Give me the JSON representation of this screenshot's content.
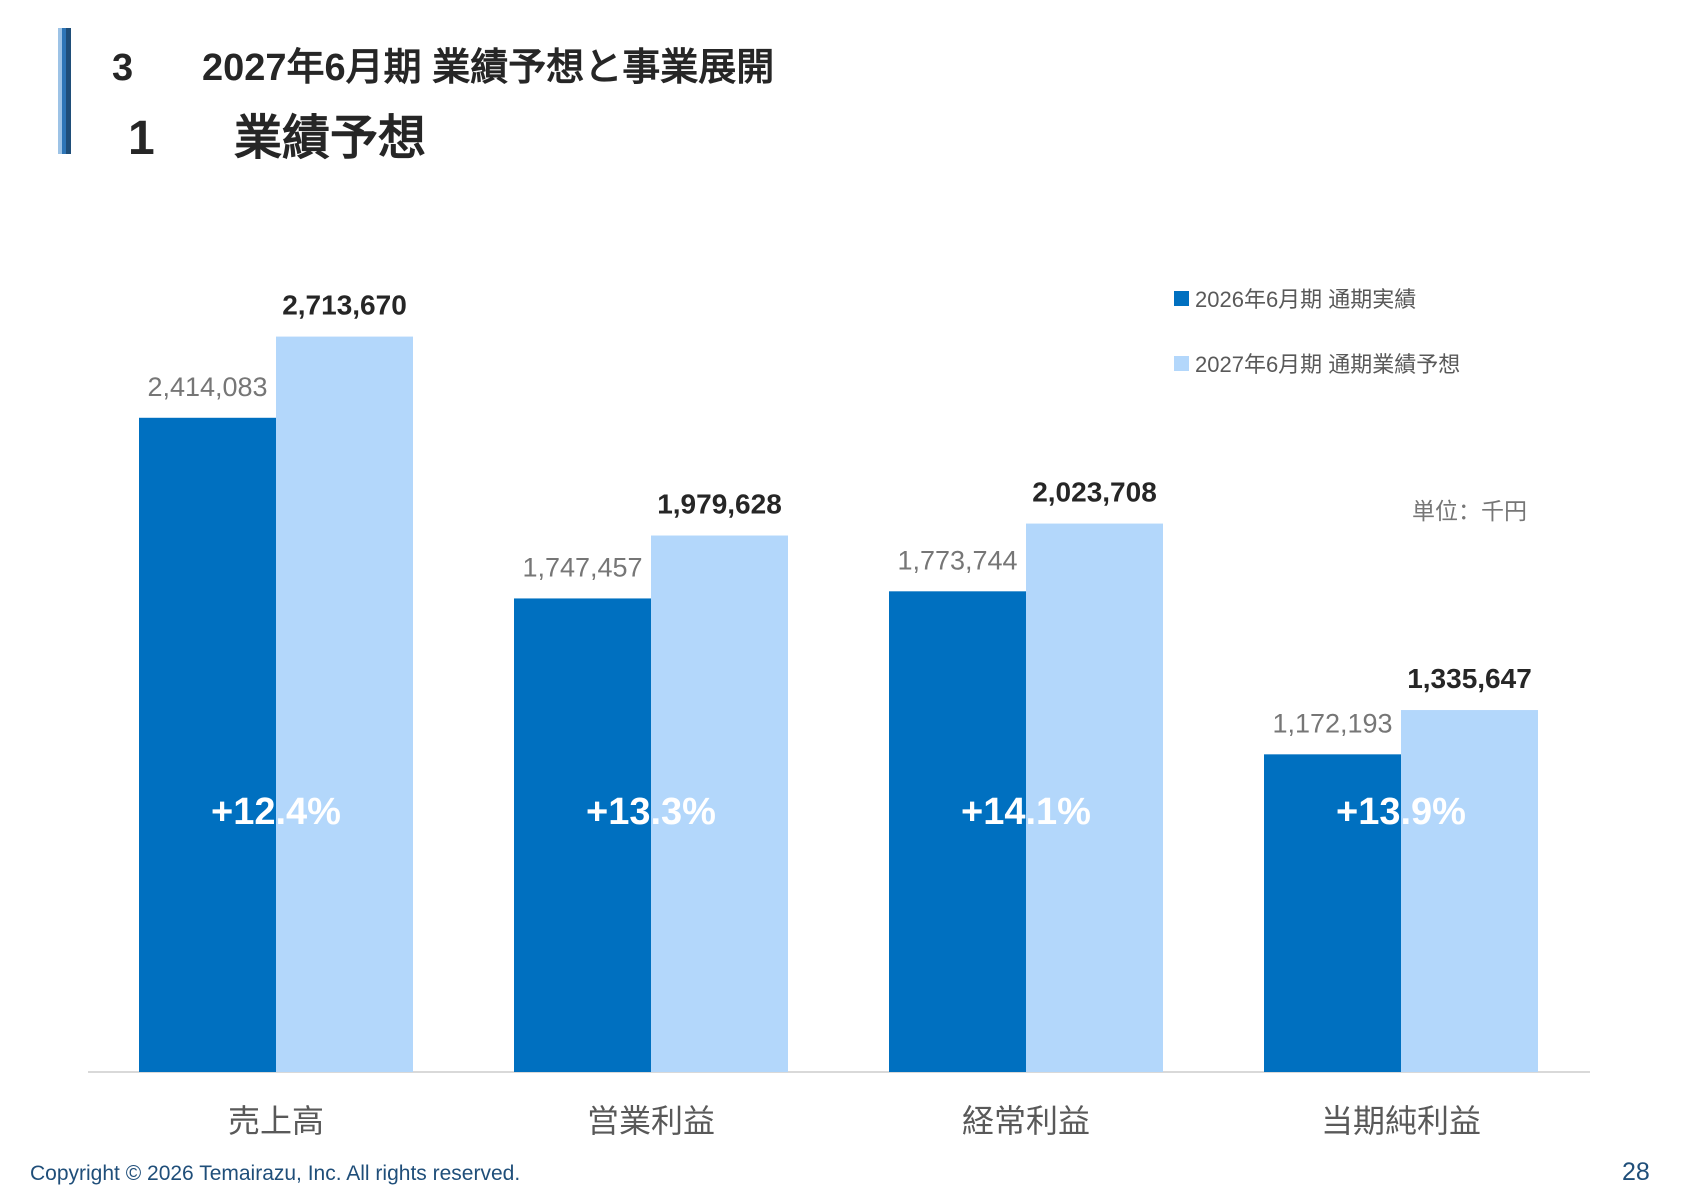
{
  "header": {
    "section_number": "3",
    "section_title": "2027年6月期 業績予想と事業展開",
    "subsection_number": "1",
    "subsection_title": "業績予想"
  },
  "colors": {
    "actual": "#0070c0",
    "forecast": "#b3d7fb",
    "accent": "#1f4e79"
  },
  "chart_data": {
    "type": "bar",
    "categories": [
      "売上高",
      "営業利益",
      "経常利益",
      "当期純利益"
    ],
    "series": [
      {
        "name": "2026年6月期 通期実績",
        "values": [
          2414083,
          1747457,
          1773744,
          1172193
        ]
      },
      {
        "name": "2027年6月期 通期業績予想",
        "values": [
          2713670,
          1979628,
          2023708,
          1335647
        ]
      }
    ],
    "value_labels": [
      [
        "2,414,083",
        "1,747,457",
        "1,773,744",
        "1,172,193"
      ],
      [
        "2,713,670",
        "1,979,628",
        "2,023,708",
        "1,335,647"
      ]
    ],
    "growth_labels": [
      "+12.4%",
      "+13.3%",
      "+14.1%",
      "+13.9%"
    ],
    "unit_label": "単位：千円",
    "ylim": [
      0,
      3000000
    ],
    "grid": false,
    "legend_position": "top-right"
  },
  "footer": {
    "copyright": "Copyright © 2026 Temairazu, Inc. All rights reserved.",
    "page_number": "28"
  }
}
